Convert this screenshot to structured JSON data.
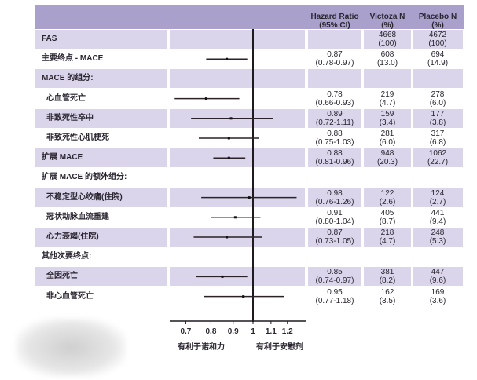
{
  "header": {
    "hr": "Hazard Ratio",
    "hr_sub": "(95% CI)",
    "victoza": "Victoza N",
    "victoza_sub": "(%)",
    "placebo": "Placebo N",
    "placebo_sub": "(%)"
  },
  "colors": {
    "header": "#a9a0cc",
    "shade": "#dbd5eb"
  },
  "chart_data": {
    "type": "forest",
    "xscale": "log",
    "xlim": [
      0.6,
      1.3
    ],
    "reference_line": 1,
    "ticks": [
      "0.7",
      "0.8",
      "0.9",
      "1",
      "1.1",
      "1.2"
    ],
    "tick_values": [
      0.7,
      0.8,
      0.9,
      1,
      1.1,
      1.2
    ],
    "xlabel_left": "有利于诺和力",
    "xlabel_right": "有利于安慰剂",
    "rows": [
      {
        "label": "FAS",
        "indent": 0,
        "shade": true,
        "hr": null,
        "ci": "",
        "hr_text": "",
        "v_n": "4668",
        "v_p": "(100)",
        "p_n": "4672",
        "p_p": "(100)"
      },
      {
        "label": "主要终点 - MACE",
        "indent": 0,
        "shade": false,
        "hr": 0.87,
        "lo": 0.78,
        "hi": 0.97,
        "hr_text": "0.87",
        "ci": "(0.78-0.97)",
        "v_n": "608",
        "v_p": "(13.0)",
        "p_n": "694",
        "p_p": "(14.9)"
      },
      {
        "label": "MACE 的组分:",
        "indent": 0,
        "shade": true,
        "hr": null,
        "hr_text": "",
        "ci": "",
        "v_n": "",
        "v_p": "",
        "p_n": "",
        "p_p": ""
      },
      {
        "label": "心血管死亡",
        "indent": 1,
        "shade": false,
        "hr": 0.78,
        "lo": 0.66,
        "hi": 0.93,
        "hr_text": "0.78",
        "ci": "(0.66-0.93)",
        "v_n": "219",
        "v_p": "(4.7)",
        "p_n": "278",
        "p_p": "(6.0)"
      },
      {
        "label": "非致死性卒中",
        "indent": 1,
        "shade": true,
        "hr": 0.89,
        "lo": 0.72,
        "hi": 1.11,
        "hr_text": "0.89",
        "ci": "(0.72-1.11)",
        "v_n": "159",
        "v_p": "(3.4)",
        "p_n": "177",
        "p_p": "(3.8)"
      },
      {
        "label": "非致死性心肌梗死",
        "indent": 1,
        "shade": false,
        "hr": 0.88,
        "lo": 0.75,
        "hi": 1.03,
        "hr_text": "0.88",
        "ci": "(0.75-1.03)",
        "v_n": "281",
        "v_p": "(6.0)",
        "p_n": "317",
        "p_p": "(6.8)"
      },
      {
        "label": "扩展 MACE",
        "indent": 0,
        "shade": true,
        "hr": 0.88,
        "lo": 0.81,
        "hi": 0.96,
        "hr_text": "0.88",
        "ci": "(0.81-0.96)",
        "v_n": "948",
        "v_p": "(20.3)",
        "p_n": "1062",
        "p_p": "(22.7)"
      },
      {
        "label": "扩展 MACE 的额外组分:",
        "indent": 0,
        "shade": false,
        "hr": null,
        "hr_text": "",
        "ci": "",
        "v_n": "",
        "v_p": "",
        "p_n": "",
        "p_p": ""
      },
      {
        "label": "不稳定型心绞痛(住院)",
        "indent": 1,
        "shade": true,
        "hr": 0.98,
        "lo": 0.76,
        "hi": 1.26,
        "hr_text": "0.98",
        "ci": "(0.76-1.26)",
        "v_n": "122",
        "v_p": "(2.6)",
        "p_n": "124",
        "p_p": "(2.7)"
      },
      {
        "label": "冠状动脉血流重建",
        "indent": 1,
        "shade": false,
        "hr": 0.91,
        "lo": 0.8,
        "hi": 1.04,
        "hr_text": "0.91",
        "ci": "(0.80-1.04)",
        "v_n": "405",
        "v_p": "(8.7)",
        "p_n": "441",
        "p_p": "(9.4)"
      },
      {
        "label": "心力衰竭(住院)",
        "indent": 1,
        "shade": true,
        "hr": 0.87,
        "lo": 0.73,
        "hi": 1.05,
        "hr_text": "0.87",
        "ci": "(0.73-1.05)",
        "v_n": "218",
        "v_p": "(4.7)",
        "p_n": "248",
        "p_p": "(5.3)"
      },
      {
        "label": "其他次要终点:",
        "indent": 0,
        "shade": false,
        "hr": null,
        "hr_text": "",
        "ci": "",
        "v_n": "",
        "v_p": "",
        "p_n": "",
        "p_p": ""
      },
      {
        "label": "全因死亡",
        "indent": 1,
        "shade": true,
        "hr": 0.85,
        "lo": 0.74,
        "hi": 0.97,
        "hr_text": "0.85",
        "ci": "(0.74-0.97)",
        "v_n": "381",
        "v_p": "(8.2)",
        "p_n": "447",
        "p_p": "(9.6)"
      },
      {
        "label": "非心血管死亡",
        "indent": 1,
        "shade": false,
        "hr": 0.95,
        "lo": 0.77,
        "hi": 1.18,
        "hr_text": "0.95",
        "ci": "(0.77-1.18)",
        "v_n": "162",
        "v_p": "(3.5)",
        "p_n": "169",
        "p_p": "(3.6)"
      }
    ]
  }
}
